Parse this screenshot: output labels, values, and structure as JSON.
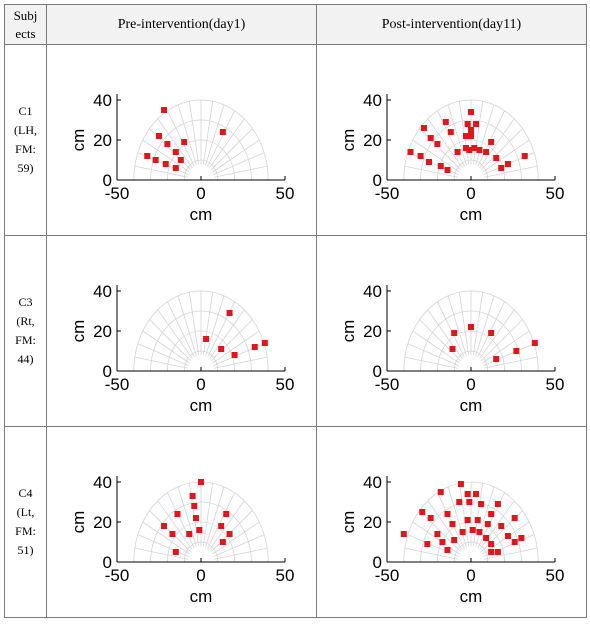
{
  "header": {
    "subject_line1": "Subj",
    "subject_line2": "ects",
    "pre": "Pre-intervention(day1)",
    "post": "Post-intervention(day11)"
  },
  "rows": [
    {
      "subject": [
        "C1",
        "(LH,",
        "FM:",
        "59)"
      ],
      "pre": [
        [
          -22,
          35
        ],
        [
          -25,
          22
        ],
        [
          -20,
          18
        ],
        [
          -15,
          14
        ],
        [
          -10,
          19
        ],
        [
          -32,
          12
        ],
        [
          -27,
          10
        ],
        [
          -21,
          8
        ],
        [
          -12,
          10
        ],
        [
          -15,
          6
        ],
        [
          13,
          24
        ]
      ],
      "post": [
        [
          0,
          34
        ],
        [
          -2,
          28
        ],
        [
          3,
          28
        ],
        [
          0,
          25
        ],
        [
          0,
          22
        ],
        [
          -3,
          22
        ],
        [
          -15,
          29
        ],
        [
          -12,
          24
        ],
        [
          -28,
          26
        ],
        [
          -24,
          21
        ],
        [
          -20,
          18
        ],
        [
          -36,
          14
        ],
        [
          -30,
          12
        ],
        [
          -25,
          9
        ],
        [
          -18,
          7
        ],
        [
          -14,
          5
        ],
        [
          -8,
          14
        ],
        [
          -3,
          16
        ],
        [
          2,
          16
        ],
        [
          5,
          15
        ],
        [
          9,
          14
        ],
        [
          12,
          19
        ],
        [
          15,
          11
        ],
        [
          18,
          6
        ],
        [
          22,
          8
        ],
        [
          32,
          12
        ],
        [
          -1,
          15
        ]
      ]
    },
    {
      "subject": [
        "C3",
        "(Rt,",
        "FM:",
        "44)"
      ],
      "pre": [
        [
          3,
          16
        ],
        [
          12,
          11
        ],
        [
          17,
          29
        ],
        [
          20,
          8
        ],
        [
          32,
          12
        ],
        [
          38,
          14
        ]
      ],
      "post": [
        [
          0,
          22
        ],
        [
          -10,
          19
        ],
        [
          -11,
          11
        ],
        [
          12,
          19
        ],
        [
          15,
          6
        ],
        [
          27,
          10
        ],
        [
          38,
          14
        ]
      ]
    },
    {
      "subject": [
        "C4",
        "(Lt,",
        "FM:",
        "51)"
      ],
      "pre": [
        [
          0,
          40
        ],
        [
          -5,
          33
        ],
        [
          -4,
          28
        ],
        [
          -14,
          24
        ],
        [
          -22,
          18
        ],
        [
          -3,
          22
        ],
        [
          -17,
          14
        ],
        [
          -7,
          14
        ],
        [
          -1,
          16
        ],
        [
          -15,
          5
        ],
        [
          12,
          18
        ],
        [
          15,
          24
        ],
        [
          17,
          14
        ],
        [
          13,
          10
        ]
      ],
      "post": [
        [
          -6,
          39
        ],
        [
          -2,
          34
        ],
        [
          3,
          34
        ],
        [
          -7,
          30
        ],
        [
          -1,
          30
        ],
        [
          6,
          29
        ],
        [
          -18,
          35
        ],
        [
          -29,
          25
        ],
        [
          -24,
          22
        ],
        [
          -14,
          24
        ],
        [
          -11,
          19
        ],
        [
          -2,
          21
        ],
        [
          4,
          21
        ],
        [
          12,
          24
        ],
        [
          16,
          29
        ],
        [
          10,
          19
        ],
        [
          18,
          18
        ],
        [
          26,
          22
        ],
        [
          22,
          13
        ],
        [
          30,
          12
        ],
        [
          -40,
          14
        ],
        [
          -26,
          9
        ],
        [
          -20,
          14
        ],
        [
          -17,
          10
        ],
        [
          -14,
          6
        ],
        [
          -5,
          15
        ],
        [
          1,
          16
        ],
        [
          5,
          15
        ],
        [
          9,
          12
        ],
        [
          12,
          9
        ],
        [
          16,
          5
        ],
        [
          12,
          5
        ],
        [
          -10,
          11
        ],
        [
          26,
          10
        ]
      ]
    }
  ],
  "chart_data": [
    {
      "type": "scatter",
      "title": "Pre-intervention(day1)",
      "subject": "C1",
      "xlabel": "cm",
      "ylabel": "cm",
      "xlim": [
        -50,
        50
      ],
      "ylim": [
        0,
        40
      ],
      "xticks": [
        "-50",
        "0",
        "50"
      ],
      "yticks": [
        "0",
        "20",
        "40"
      ],
      "background": "polar grid semicircle",
      "marker_color": "#e0161c",
      "points": [
        [
          -22,
          35
        ],
        [
          -25,
          22
        ],
        [
          -20,
          18
        ],
        [
          -15,
          14
        ],
        [
          -10,
          19
        ],
        [
          -32,
          12
        ],
        [
          -27,
          10
        ],
        [
          -21,
          8
        ],
        [
          -12,
          10
        ],
        [
          -15,
          6
        ],
        [
          13,
          24
        ]
      ]
    },
    {
      "type": "scatter",
      "title": "Post-intervention(day11)",
      "subject": "C1",
      "xlabel": "cm",
      "ylabel": "cm",
      "xlim": [
        -50,
        50
      ],
      "ylim": [
        0,
        40
      ],
      "xticks": [
        "-50",
        "0",
        "50"
      ],
      "yticks": [
        "0",
        "20",
        "40"
      ],
      "background": "polar grid semicircle",
      "marker_color": "#e0161c",
      "points": [
        [
          0,
          34
        ],
        [
          -2,
          28
        ],
        [
          3,
          28
        ],
        [
          0,
          25
        ],
        [
          0,
          22
        ],
        [
          -3,
          22
        ],
        [
          -15,
          29
        ],
        [
          -12,
          24
        ],
        [
          -28,
          26
        ],
        [
          -24,
          21
        ],
        [
          -20,
          18
        ],
        [
          -36,
          14
        ],
        [
          -30,
          12
        ],
        [
          -25,
          9
        ],
        [
          -18,
          7
        ],
        [
          -14,
          5
        ],
        [
          -8,
          14
        ],
        [
          -3,
          16
        ],
        [
          2,
          16
        ],
        [
          5,
          15
        ],
        [
          9,
          14
        ],
        [
          12,
          19
        ],
        [
          15,
          11
        ],
        [
          18,
          6
        ],
        [
          22,
          8
        ],
        [
          32,
          12
        ],
        [
          -1,
          15
        ]
      ]
    },
    {
      "type": "scatter",
      "title": "Pre-intervention(day1)",
      "subject": "C3",
      "xlabel": "cm",
      "ylabel": "cm",
      "xlim": [
        -50,
        50
      ],
      "ylim": [
        0,
        40
      ],
      "xticks": [
        "-50",
        "0",
        "50"
      ],
      "yticks": [
        "0",
        "20",
        "40"
      ],
      "background": "polar grid semicircle",
      "marker_color": "#e0161c",
      "points": [
        [
          3,
          16
        ],
        [
          12,
          11
        ],
        [
          17,
          29
        ],
        [
          20,
          8
        ],
        [
          32,
          12
        ],
        [
          38,
          14
        ]
      ]
    },
    {
      "type": "scatter",
      "title": "Post-intervention(day11)",
      "subject": "C3",
      "xlabel": "cm",
      "ylabel": "cm",
      "xlim": [
        -50,
        50
      ],
      "ylim": [
        0,
        40
      ],
      "xticks": [
        "-50",
        "0",
        "50"
      ],
      "yticks": [
        "0",
        "20",
        "40"
      ],
      "background": "polar grid semicircle",
      "marker_color": "#e0161c",
      "points": [
        [
          0,
          22
        ],
        [
          -10,
          19
        ],
        [
          -11,
          11
        ],
        [
          12,
          19
        ],
        [
          15,
          6
        ],
        [
          27,
          10
        ],
        [
          38,
          14
        ]
      ]
    },
    {
      "type": "scatter",
      "title": "Pre-intervention(day1)",
      "subject": "C4",
      "xlabel": "cm",
      "ylabel": "cm",
      "xlim": [
        -50,
        50
      ],
      "ylim": [
        0,
        40
      ],
      "xticks": [
        "-50",
        "0",
        "50"
      ],
      "yticks": [
        "0",
        "20",
        "40"
      ],
      "background": "polar grid semicircle",
      "marker_color": "#e0161c",
      "points": [
        [
          0,
          40
        ],
        [
          -5,
          33
        ],
        [
          -4,
          28
        ],
        [
          -14,
          24
        ],
        [
          -22,
          18
        ],
        [
          -3,
          22
        ],
        [
          -17,
          14
        ],
        [
          -7,
          14
        ],
        [
          -1,
          16
        ],
        [
          -15,
          5
        ],
        [
          12,
          18
        ],
        [
          15,
          24
        ],
        [
          17,
          14
        ],
        [
          13,
          10
        ]
      ]
    },
    {
      "type": "scatter",
      "title": "Post-intervention(day11)",
      "subject": "C4",
      "xlabel": "cm",
      "ylabel": "cm",
      "xlim": [
        -50,
        50
      ],
      "ylim": [
        0,
        40
      ],
      "xticks": [
        "-50",
        "0",
        "50"
      ],
      "yticks": [
        "0",
        "20",
        "40"
      ],
      "background": "polar grid semicircle",
      "marker_color": "#e0161c",
      "points": [
        [
          -6,
          39
        ],
        [
          -2,
          34
        ],
        [
          3,
          34
        ],
        [
          -7,
          30
        ],
        [
          -1,
          30
        ],
        [
          6,
          29
        ],
        [
          -18,
          35
        ],
        [
          -29,
          25
        ],
        [
          -24,
          22
        ],
        [
          -14,
          24
        ],
        [
          -11,
          19
        ],
        [
          -2,
          21
        ],
        [
          4,
          21
        ],
        [
          12,
          24
        ],
        [
          16,
          29
        ],
        [
          10,
          19
        ],
        [
          18,
          18
        ],
        [
          26,
          22
        ],
        [
          22,
          13
        ],
        [
          30,
          12
        ],
        [
          -40,
          14
        ],
        [
          -26,
          9
        ],
        [
          -20,
          14
        ],
        [
          -17,
          10
        ],
        [
          -14,
          6
        ],
        [
          -5,
          15
        ],
        [
          1,
          16
        ],
        [
          5,
          15
        ],
        [
          9,
          12
        ],
        [
          12,
          9
        ],
        [
          16,
          5
        ],
        [
          12,
          5
        ],
        [
          -10,
          11
        ],
        [
          26,
          10
        ]
      ]
    }
  ],
  "axis": {
    "xlabel": "cm",
    "ylabel": "cm",
    "xticks": [
      "-50",
      "0",
      "50"
    ],
    "yticks": [
      "0",
      "20",
      "40"
    ],
    "marker_color": "#e0161c",
    "grid_color": "#d4d4d4"
  }
}
